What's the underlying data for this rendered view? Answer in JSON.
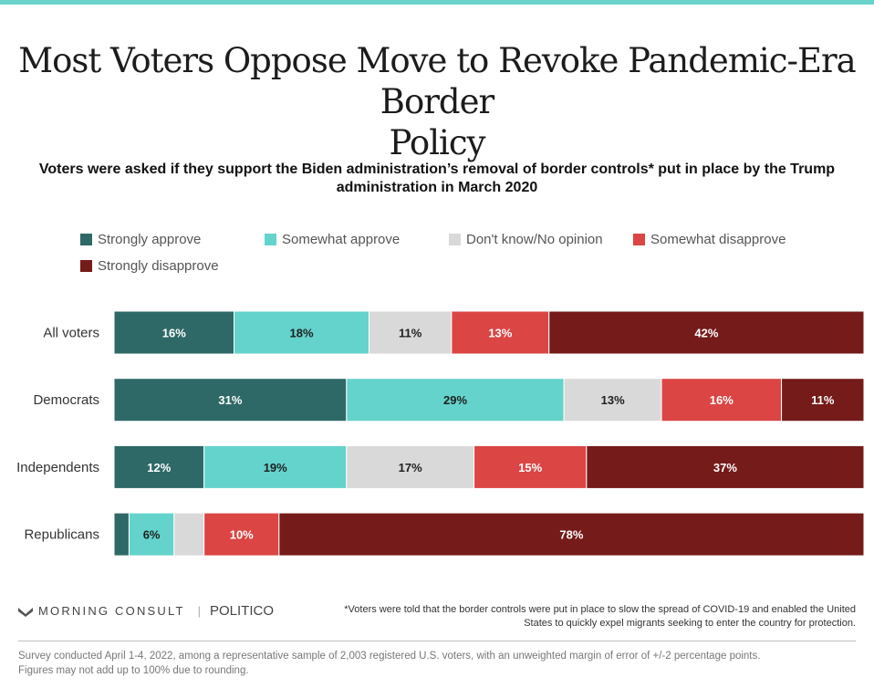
{
  "colors": {
    "accent_bar": "#6ad3cb",
    "strongly_approve": "#2e6967",
    "somewhat_approve": "#64d3cb",
    "no_opinion": "#d9d9d9",
    "somewhat_disapprove": "#db4544",
    "strongly_disapprove": "#751b1a"
  },
  "header": {
    "title_line1": "Most Voters Oppose Move to Revoke Pandemic-Era Border",
    "title_line2": "Policy",
    "subtitle_line1": "Voters were asked if they support the Biden administration’s removal of border controls* put in place by the Trump",
    "subtitle_line2": "administration in March 2020"
  },
  "legend": [
    {
      "label": "Strongly approve",
      "color": "#2e6967"
    },
    {
      "label": "Somewhat approve",
      "color": "#64d3cb"
    },
    {
      "label": "Don't know/No opinion",
      "color": "#d9d9d9"
    },
    {
      "label": "Somewhat disapprove",
      "color": "#db4544"
    },
    {
      "label": "Strongly disapprove",
      "color": "#751b1a"
    }
  ],
  "chart_data": {
    "type": "bar",
    "orientation": "horizontal",
    "stacked": true,
    "title": "Most Voters Oppose Move to Revoke Pandemic-Era Border Policy",
    "xlim": [
      0,
      100
    ],
    "unit": "%",
    "categories": [
      "All voters",
      "Democrats",
      "Independents",
      "Republicans"
    ],
    "series": [
      {
        "name": "Strongly approve",
        "color": "#2e6967",
        "label_color": "#ffffff",
        "values": [
          16,
          31,
          12,
          2
        ]
      },
      {
        "name": "Somewhat approve",
        "color": "#64d3cb",
        "label_color": "#1f1f1f",
        "values": [
          18,
          29,
          19,
          6
        ]
      },
      {
        "name": "Don't know/No opinion",
        "color": "#d9d9d9",
        "label_color": "#1f1f1f",
        "values": [
          11,
          13,
          17,
          4
        ]
      },
      {
        "name": "Somewhat disapprove",
        "color": "#db4544",
        "label_color": "#ffffff",
        "values": [
          13,
          16,
          15,
          10
        ]
      },
      {
        "name": "Strongly disapprove",
        "color": "#751b1a",
        "label_color": "#ffffff",
        "values": [
          42,
          11,
          37,
          78
        ]
      }
    ],
    "bar_labels": [
      [
        "16%",
        "18%",
        "11%",
        "13%",
        "42%"
      ],
      [
        "31%",
        "29%",
        "13%",
        "16%",
        "11%"
      ],
      [
        "12%",
        "19%",
        "17%",
        "15%",
        "37%"
      ],
      [
        "",
        "6%",
        "",
        "10%",
        "78%"
      ]
    ]
  },
  "footer": {
    "brand_morning_consult": "MORNING CONSULT",
    "brand_sep": "|",
    "brand_politico": "POLITICO",
    "footnote_line1": "*Voters were told that the border controls were put in place to slow the spread of COVID-19 and enabled the United",
    "footnote_line2": "States to quickly expel migrants seeking to enter the country for protection.",
    "source_line1": "Survey conducted April 1-4, 2022, among a representative sample of 2,003 registered U.S. voters, with an unweighted margin of error of +/-2 percentage points.",
    "source_line2": "Figures may not add up to 100% due to rounding."
  }
}
